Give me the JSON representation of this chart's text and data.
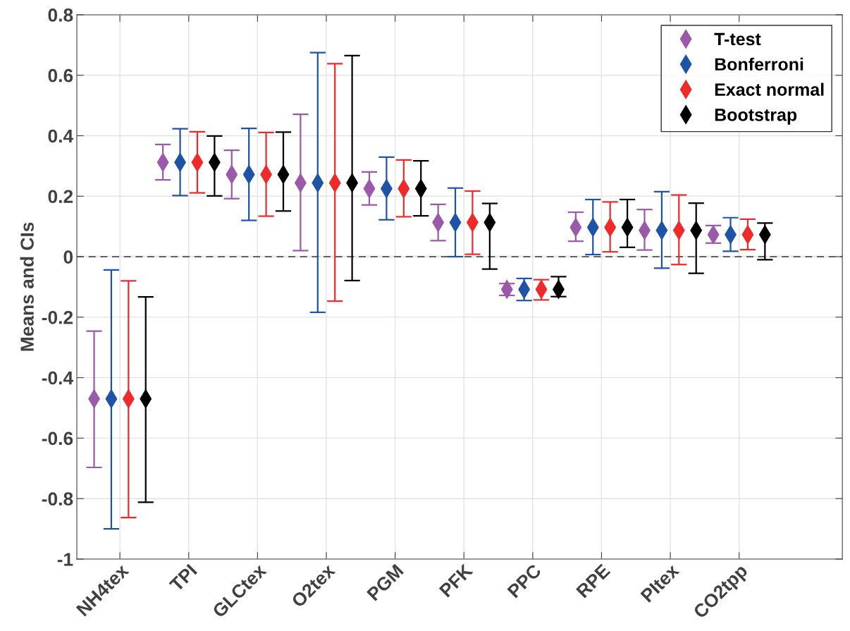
{
  "chart_data": {
    "type": "scatter",
    "ylabel": "Means and CIs",
    "categories": [
      "NH4tex",
      "TPI",
      "GLCtex",
      "O2tex",
      "PGM",
      "PFK",
      "PPC",
      "RPE",
      "PItex",
      "CO2tpp"
    ],
    "ylim": [
      -1,
      0.8
    ],
    "yticks": [
      -1,
      -0.8,
      -0.6,
      -0.4,
      -0.2,
      0,
      0.2,
      0.4,
      0.6,
      0.8
    ],
    "grid": true,
    "legend": "top right",
    "marker": "diamond",
    "ref_lines": [
      {
        "axis": "y",
        "value": 0,
        "label": null,
        "color": "#4d4d4d",
        "line_style": "dashed"
      }
    ],
    "series": [
      {
        "name": "T-test",
        "color": "#9b59a9",
        "values": [
          -0.47,
          0.312,
          0.272,
          0.244,
          0.225,
          0.113,
          -0.108,
          0.097,
          0.087,
          0.073
        ],
        "errors": [
          [
            -0.697,
            -0.246
          ],
          [
            0.254,
            0.371
          ],
          [
            0.192,
            0.352
          ],
          [
            0.02,
            0.471
          ],
          [
            0.171,
            0.28
          ],
          [
            0.053,
            0.173
          ],
          [
            -0.128,
            -0.089
          ],
          [
            0.051,
            0.147
          ],
          [
            0.022,
            0.156
          ],
          [
            0.045,
            0.103
          ]
        ]
      },
      {
        "name": "Bonferroni",
        "color": "#1f53a6",
        "values": [
          -0.47,
          0.312,
          0.272,
          0.244,
          0.225,
          0.113,
          -0.108,
          0.097,
          0.087,
          0.073
        ],
        "errors": [
          [
            -0.9,
            -0.044
          ],
          [
            0.202,
            0.423
          ],
          [
            0.12,
            0.424
          ],
          [
            -0.184,
            0.675
          ],
          [
            0.122,
            0.329
          ],
          [
            0.0,
            0.227
          ],
          [
            -0.145,
            -0.072
          ],
          [
            0.007,
            0.189
          ],
          [
            -0.038,
            0.215
          ],
          [
            0.018,
            0.129
          ]
        ]
      },
      {
        "name": "Exact normal",
        "color": "#ee2a2a",
        "values": [
          -0.47,
          0.312,
          0.272,
          0.244,
          0.225,
          0.113,
          -0.108,
          0.097,
          0.087,
          0.073
        ],
        "errors": [
          [
            -0.863,
            -0.08
          ],
          [
            0.211,
            0.413
          ],
          [
            0.134,
            0.411
          ],
          [
            -0.147,
            0.638
          ],
          [
            0.132,
            0.32
          ],
          [
            0.008,
            0.217
          ],
          [
            -0.143,
            -0.076
          ],
          [
            0.016,
            0.181
          ],
          [
            -0.026,
            0.204
          ],
          [
            0.023,
            0.124
          ]
        ]
      },
      {
        "name": "Bootstrap",
        "color": "#000000",
        "values": [
          -0.47,
          0.312,
          0.272,
          0.244,
          0.225,
          0.113,
          -0.108,
          0.097,
          0.087,
          0.073
        ],
        "errors": [
          [
            -0.812,
            -0.133
          ],
          [
            0.201,
            0.399
          ],
          [
            0.151,
            0.412
          ],
          [
            -0.079,
            0.665
          ],
          [
            0.135,
            0.317
          ],
          [
            -0.041,
            0.176
          ],
          [
            -0.132,
            -0.066
          ],
          [
            0.031,
            0.189
          ],
          [
            -0.055,
            0.177
          ],
          [
            -0.01,
            0.111
          ]
        ]
      }
    ]
  }
}
